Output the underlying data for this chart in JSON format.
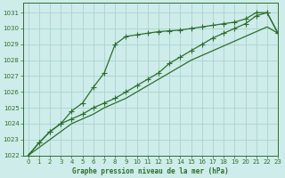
{
  "x": [
    0,
    1,
    2,
    3,
    4,
    5,
    6,
    7,
    8,
    9,
    10,
    11,
    12,
    13,
    14,
    15,
    16,
    17,
    18,
    19,
    20,
    21,
    22,
    23
  ],
  "line1": [
    1022.0,
    1022.8,
    1023.5,
    1024.0,
    1024.8,
    1025.3,
    1026.3,
    1027.2,
    1029.0,
    1029.5,
    1029.6,
    1029.7,
    1029.8,
    1029.85,
    1029.9,
    1030.0,
    1030.1,
    1030.2,
    1030.3,
    1030.4,
    1030.6,
    1031.0,
    1031.0,
    1029.7
  ],
  "line2": [
    1022.0,
    1022.8,
    1023.5,
    1024.0,
    1024.3,
    1024.6,
    1025.0,
    1025.3,
    1025.6,
    1026.0,
    1026.4,
    1026.8,
    1027.2,
    1027.8,
    1028.2,
    1028.6,
    1029.0,
    1029.4,
    1029.7,
    1030.0,
    1030.3,
    1030.8,
    1031.0,
    1029.7
  ],
  "line3": [
    1022.0,
    1022.5,
    1023.0,
    1023.5,
    1024.0,
    1024.3,
    1024.6,
    1025.0,
    1025.3,
    1025.6,
    1026.0,
    1026.4,
    1026.8,
    1027.2,
    1027.6,
    1028.0,
    1028.3,
    1028.6,
    1028.9,
    1029.2,
    1029.5,
    1029.8,
    1030.1,
    1029.7
  ],
  "line_color": "#2d6e2d",
  "marker_color": "#2d6e2d",
  "bg_color": "#ceecea",
  "grid_color": "#aad4ce",
  "axis_color": "#2d6e2d",
  "xlabel": "Graphe pression niveau de la mer (hPa)",
  "ylim": [
    1022,
    1031.6
  ],
  "xlim": [
    -0.5,
    23
  ],
  "yticks": [
    1022,
    1023,
    1024,
    1025,
    1026,
    1027,
    1028,
    1029,
    1030,
    1031
  ],
  "xticks": [
    0,
    1,
    2,
    3,
    4,
    5,
    6,
    7,
    8,
    9,
    10,
    11,
    12,
    13,
    14,
    15,
    16,
    17,
    18,
    19,
    20,
    21,
    22,
    23
  ]
}
